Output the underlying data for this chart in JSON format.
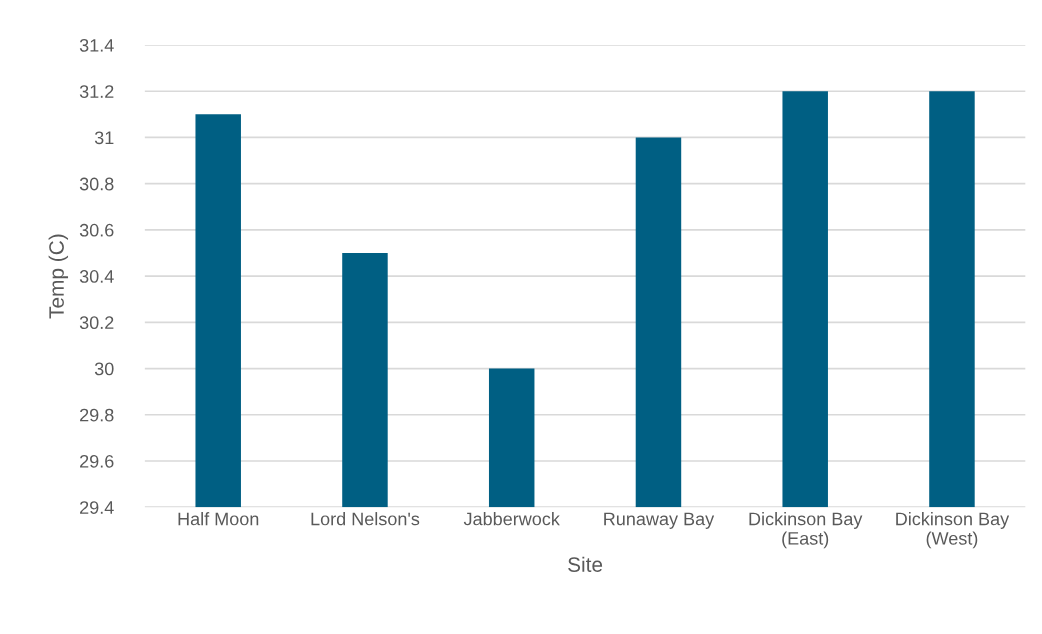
{
  "chart_data": {
    "type": "bar",
    "xlabel": "Site",
    "ylabel": "Temp (C)",
    "categories": [
      "Half Moon",
      "Lord Nelson's",
      "Jabberwock",
      "Runaway Bay",
      "Dickinson Bay\n(East)",
      "Dickinson Bay\n(West)"
    ],
    "values": [
      31.1,
      30.5,
      30.0,
      31.0,
      31.2,
      31.2
    ],
    "color": "#005f83",
    "ylim": [
      29.4,
      31.4
    ],
    "yticks": [
      29.4,
      29.6,
      29.8,
      30,
      30.2,
      30.4,
      30.6,
      30.8,
      31,
      31.2,
      31.4
    ],
    "grid": "y"
  }
}
